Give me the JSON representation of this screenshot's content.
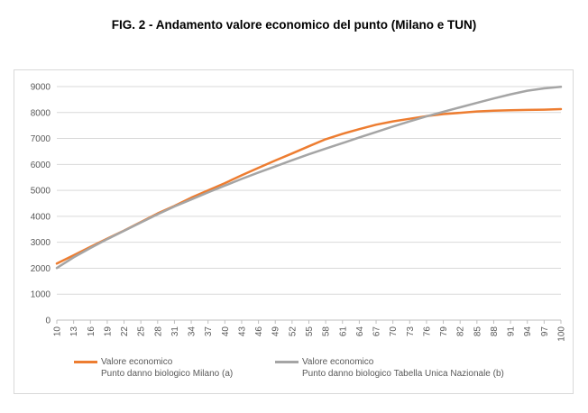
{
  "title": "FIG. 2 - Andamento valore economico del punto (Milano e TUN)",
  "chart_data": {
    "type": "line",
    "title": "FIG. 2 - Andamento valore economico del punto (Milano e TUN)",
    "xlabel": "",
    "ylabel": "",
    "ylim": [
      0,
      9000
    ],
    "yticks": [
      0,
      1000,
      2000,
      3000,
      4000,
      5000,
      6000,
      7000,
      8000,
      9000
    ],
    "xlim": [
      10,
      100
    ],
    "xticks": [
      10,
      13,
      16,
      19,
      22,
      25,
      28,
      31,
      34,
      37,
      40,
      43,
      46,
      49,
      52,
      55,
      58,
      61,
      64,
      67,
      70,
      73,
      76,
      79,
      82,
      85,
      88,
      91,
      94,
      97,
      100
    ],
    "grid": true,
    "legend": "bottom",
    "series": [
      {
        "name": "Valore economico Punto danno biologico Milano (a)",
        "legend_line1": "Valore economico",
        "legend_line2": "Punto danno biologico Milano (a)",
        "color": "#ed7d31",
        "x": [
          10,
          13,
          16,
          19,
          22,
          25,
          28,
          31,
          34,
          37,
          40,
          43,
          46,
          49,
          52,
          55,
          58,
          61,
          64,
          67,
          70,
          73,
          76,
          79,
          82,
          85,
          88,
          91,
          94,
          97,
          100
        ],
        "y": [
          2180,
          2500,
          2820,
          3140,
          3450,
          3780,
          4110,
          4400,
          4720,
          5000,
          5280,
          5580,
          5870,
          6150,
          6420,
          6700,
          6970,
          7180,
          7360,
          7530,
          7660,
          7760,
          7860,
          7940,
          7990,
          8040,
          8070,
          8090,
          8100,
          8110,
          8130
        ]
      },
      {
        "name": "Valore economico Punto danno biologico Tabella Unica Nazionale (b)",
        "legend_line1": "Valore economico",
        "legend_line2": "Punto danno biologico Tabella Unica Nazionale (b)",
        "color": "#a5a5a5",
        "x": [
          10,
          13,
          16,
          19,
          22,
          25,
          28,
          31,
          34,
          37,
          40,
          43,
          46,
          49,
          52,
          55,
          58,
          61,
          64,
          67,
          70,
          73,
          76,
          79,
          82,
          85,
          88,
          91,
          94,
          97,
          100
        ],
        "y": [
          2010,
          2420,
          2780,
          3120,
          3440,
          3760,
          4080,
          4380,
          4650,
          4920,
          5180,
          5440,
          5690,
          5920,
          6160,
          6390,
          6610,
          6820,
          7040,
          7250,
          7460,
          7660,
          7850,
          8030,
          8200,
          8370,
          8540,
          8700,
          8840,
          8930,
          8990
        ]
      }
    ]
  }
}
